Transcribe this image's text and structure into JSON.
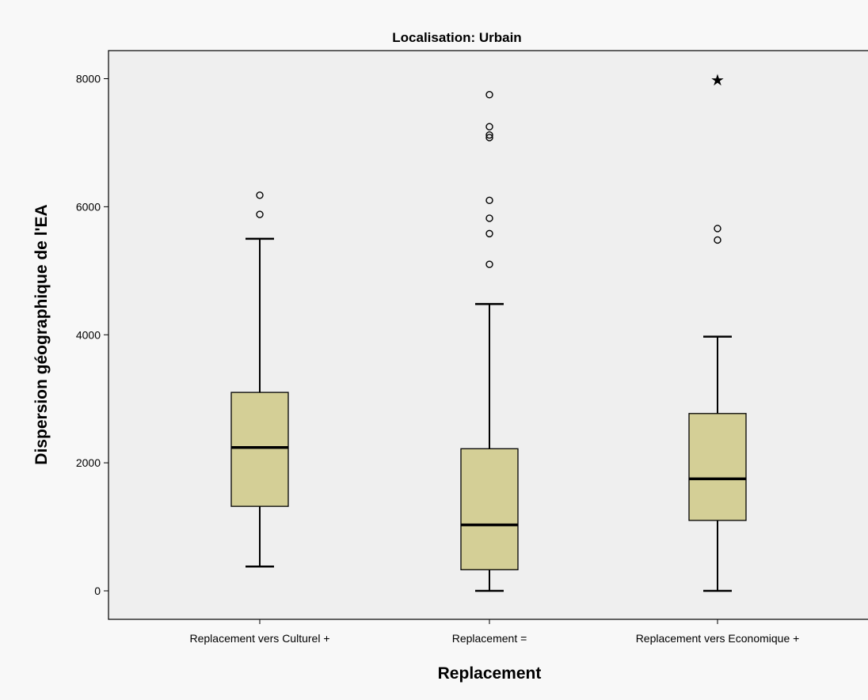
{
  "chart_data": {
    "type": "boxplot",
    "title": "Localisation: Urbain",
    "xlabel": "Replacement",
    "ylabel": "Dispersion géographique de l'EA",
    "ylim": [
      -450,
      8450
    ],
    "yticks": [
      0,
      2000,
      4000,
      6000,
      8000
    ],
    "categories": [
      "Replacement vers Culturel +",
      "Replacement =",
      "Replacement vers Economique +"
    ],
    "boxes": [
      {
        "whisker_low": 380,
        "q1": 1320,
        "median": 2240,
        "q3": 3100,
        "whisker_high": 5500,
        "outliers": [
          5880,
          6180
        ],
        "extremes": []
      },
      {
        "whisker_low": 0,
        "q1": 330,
        "median": 1030,
        "q3": 2220,
        "whisker_high": 4480,
        "outliers": [
          5100,
          5580,
          5820,
          6100,
          7080,
          7120,
          7250,
          7750
        ],
        "extremes": []
      },
      {
        "whisker_low": 0,
        "q1": 1100,
        "median": 1750,
        "q3": 2770,
        "whisker_high": 3970,
        "outliers": [
          5480,
          5660
        ],
        "extremes": [
          7980
        ]
      }
    ],
    "box_color": "#d4cf96",
    "plot_background": "#efefef",
    "grid": false,
    "legend": "none"
  }
}
